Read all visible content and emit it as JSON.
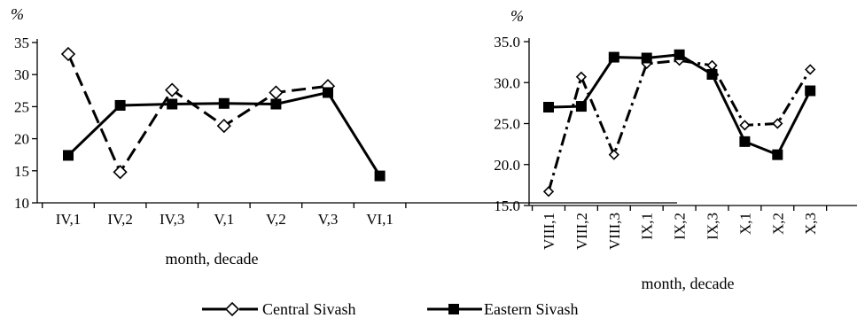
{
  "legend": {
    "central_label": "Central Sivash",
    "eastern_label": "Eastern Sivash"
  },
  "chart_data": [
    {
      "type": "line",
      "unit_label": "%",
      "xlabel": "month, decade",
      "ylabel": "",
      "categories": [
        "IV,1",
        "IV,2",
        "IV,3",
        "V,1",
        "V,2",
        "V,3",
        "VI,1"
      ],
      "ylim": [
        10,
        35
      ],
      "yticks": [
        10,
        15,
        20,
        25,
        30,
        35
      ],
      "ytick_labels": [
        "10",
        "15",
        "20",
        "25",
        "30",
        "35"
      ],
      "legend_position": "bottom",
      "series": [
        {
          "name": "Central Sivash",
          "style": "dashed",
          "marker": "diamond-open",
          "color": "#000000",
          "values": [
            33.2,
            14.8,
            27.6,
            22.0,
            27.2,
            28.2,
            null
          ]
        },
        {
          "name": "Eastern Sivash",
          "style": "solid",
          "marker": "square-filled",
          "color": "#000000",
          "values": [
            17.4,
            25.2,
            25.4,
            25.5,
            25.4,
            27.2,
            14.2
          ]
        }
      ]
    },
    {
      "type": "line",
      "unit_label": "%",
      "xlabel": "month, decade",
      "ylabel": "",
      "categories": [
        "VIII,1",
        "VIII,2",
        "VIII,3",
        "IX,1",
        "IX,2",
        "IX,3",
        "X,1",
        "X,2",
        "X,3"
      ],
      "ylim": [
        15,
        35
      ],
      "yticks": [
        15,
        20,
        25,
        30,
        35
      ],
      "ytick_labels": [
        "15.0",
        "20.0",
        "25.0",
        "30.0",
        "35.0"
      ],
      "legend_position": "bottom",
      "series": [
        {
          "name": "Central Sivash",
          "style": "dash-dot",
          "marker": "diamond-open",
          "color": "#000000",
          "values": [
            16.7,
            30.7,
            21.2,
            32.3,
            32.7,
            32.1,
            24.8,
            25.0,
            31.6
          ]
        },
        {
          "name": "Eastern Sivash",
          "style": "solid",
          "marker": "square-filled",
          "color": "#000000",
          "values": [
            27.0,
            27.1,
            33.1,
            33.0,
            33.4,
            31.0,
            22.8,
            21.2,
            29.0
          ]
        }
      ]
    }
  ]
}
